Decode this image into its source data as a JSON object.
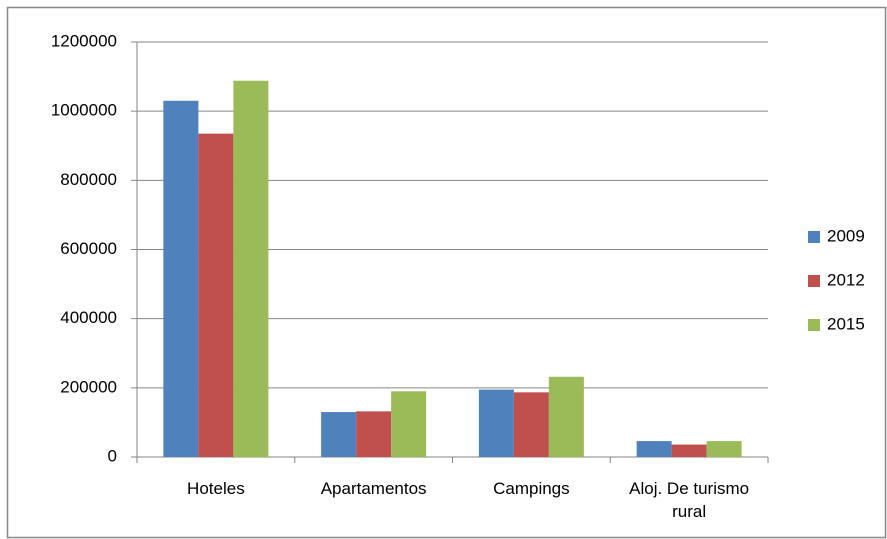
{
  "chart_data": {
    "type": "bar",
    "categories": [
      "Hoteles",
      "Apartamentos",
      "Campings",
      "Aloj. De turismo rural"
    ],
    "series": [
      {
        "name": "2009",
        "color": "#4f81bd",
        "values": [
          1030000,
          130000,
          195000,
          46000
        ]
      },
      {
        "name": "2012",
        "color": "#c0504d",
        "values": [
          935000,
          132000,
          187000,
          36000
        ]
      },
      {
        "name": "2015",
        "color": "#9bbb59",
        "values": [
          1088000,
          190000,
          232000,
          46000
        ]
      }
    ],
    "ylim": [
      0,
      1200000
    ],
    "yticks": [
      0,
      200000,
      400000,
      600000,
      800000,
      1000000,
      1200000
    ],
    "grid": true,
    "legend": "right"
  }
}
